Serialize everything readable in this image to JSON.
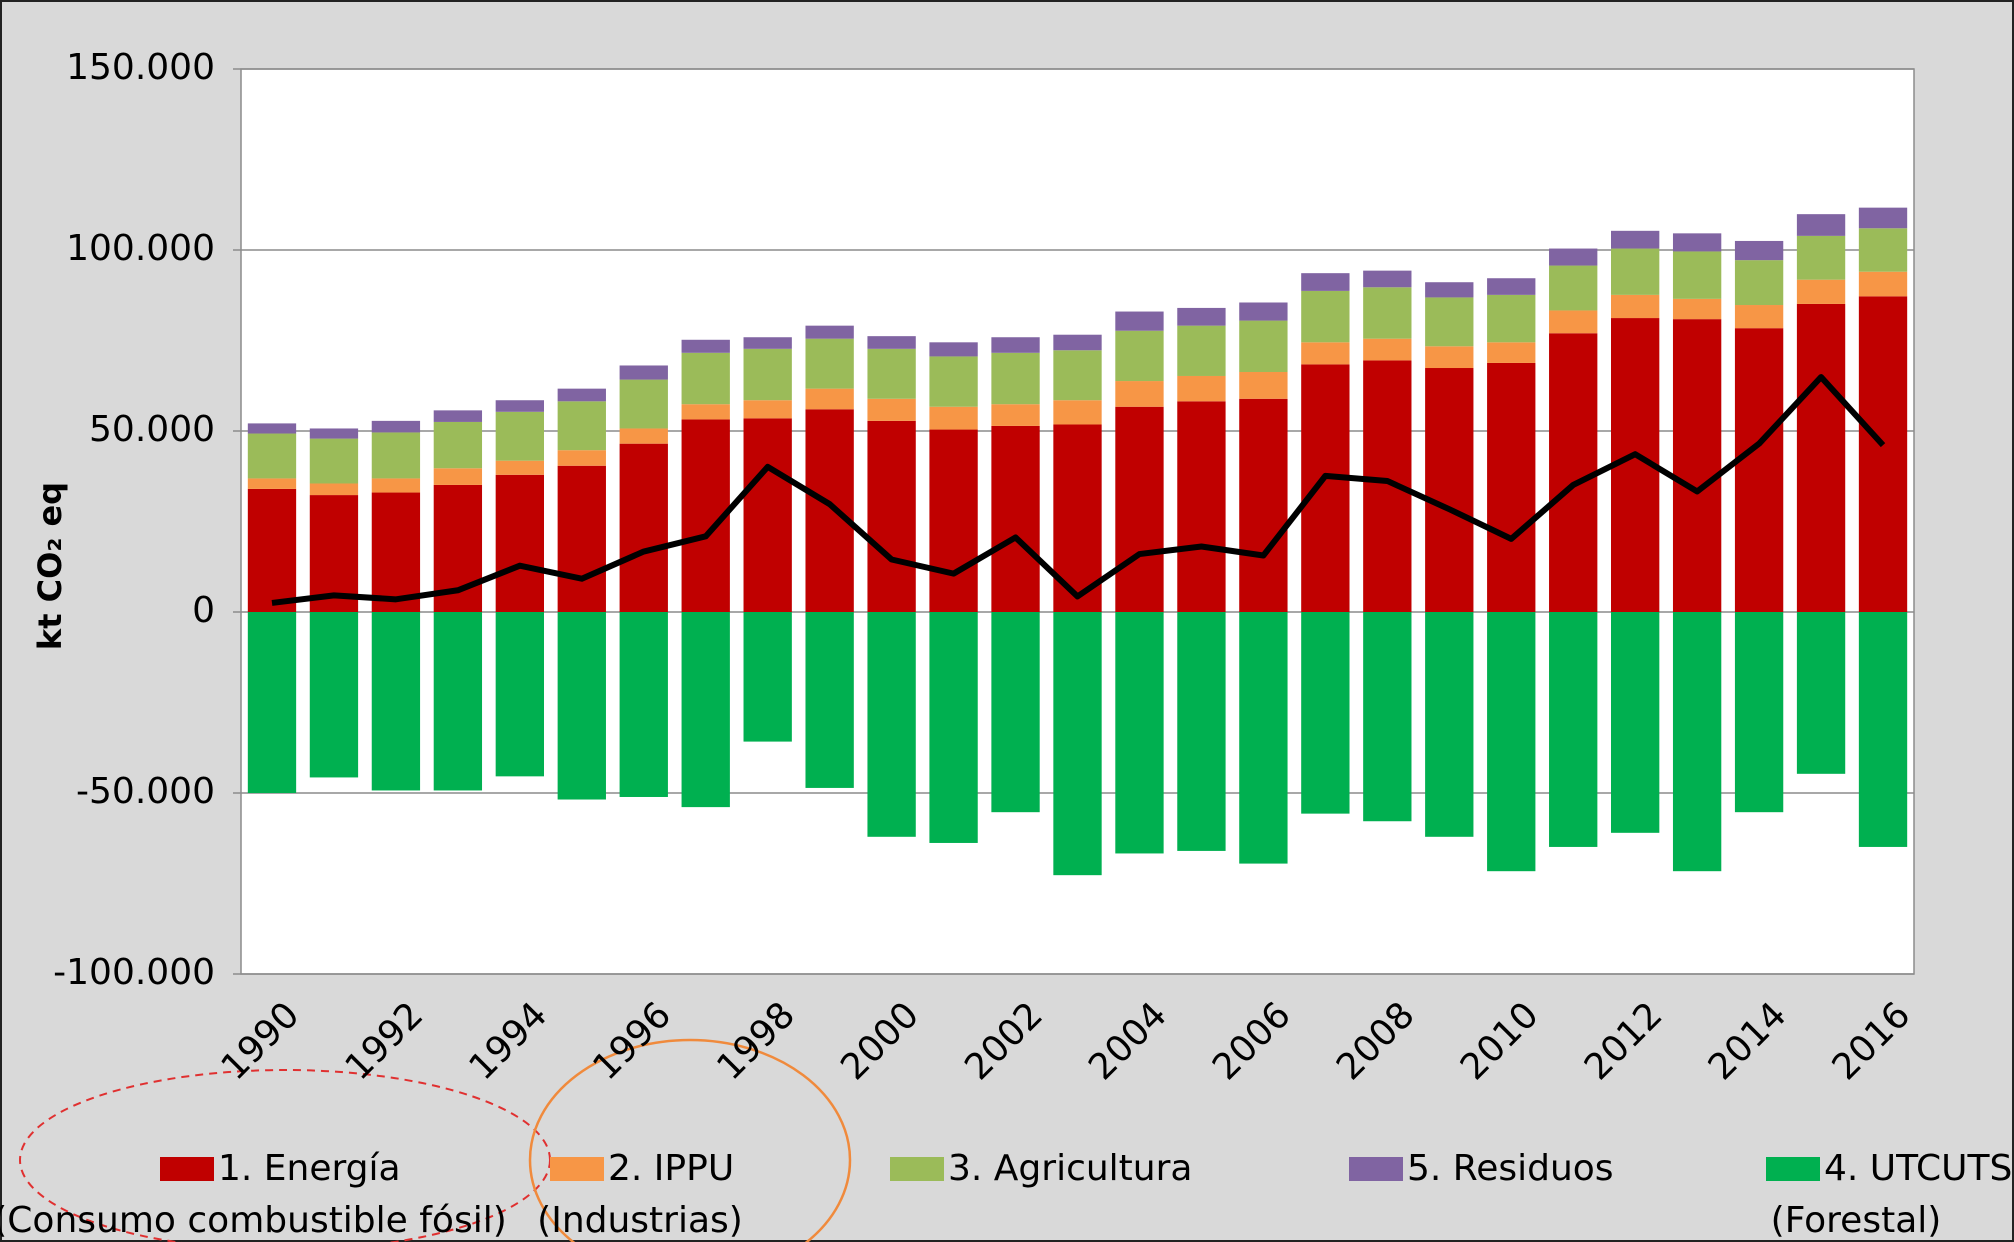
{
  "chart_data": {
    "type": "bar",
    "stacked": true,
    "y_label": "kt CO₂ eq",
    "categories": [
      "1990",
      null,
      "1992",
      null,
      "1994",
      null,
      "1996",
      null,
      "1998",
      null,
      "2000",
      null,
      "2002",
      null,
      "2004",
      null,
      "2006",
      null,
      "2008",
      null,
      "2010",
      null,
      "2012",
      null,
      "2014",
      null,
      "2016"
    ],
    "series": [
      {
        "name": "1. Energía",
        "sublabel": "(Consumo combustible fósil)",
        "color": "#c00000",
        "values": [
          34000,
          32300,
          33000,
          35100,
          37900,
          40400,
          46500,
          53200,
          53500,
          56000,
          52800,
          50400,
          51400,
          51800,
          56700,
          58200,
          58900,
          68400,
          69500,
          67400,
          68800,
          77000,
          81200,
          80900,
          78400,
          85100,
          87200
        ]
      },
      {
        "name": "2. IPPU",
        "sublabel": "(Industrias)",
        "color": "#f79646",
        "values": [
          2900,
          3200,
          3900,
          4600,
          3900,
          4300,
          4200,
          4200,
          5000,
          5700,
          6100,
          6300,
          6000,
          6700,
          7100,
          7000,
          7400,
          6100,
          6000,
          6000,
          5700,
          6300,
          6400,
          5600,
          6400,
          6700,
          6800
        ]
      },
      {
        "name": "3. Agricultura",
        "color": "#9bbb59",
        "values": [
          12400,
          12400,
          12700,
          12800,
          13500,
          13500,
          13500,
          14200,
          14200,
          13800,
          13800,
          13900,
          14200,
          13800,
          13900,
          13900,
          14200,
          14200,
          14200,
          13500,
          13100,
          12400,
          12800,
          13100,
          12400,
          12100,
          12000
        ]
      },
      {
        "name": "5. Residuos",
        "color": "#8064a2",
        "values": [
          2800,
          2800,
          3200,
          3200,
          3200,
          3500,
          3900,
          3600,
          3200,
          3600,
          3500,
          3900,
          4300,
          4300,
          5300,
          4900,
          5000,
          4900,
          4600,
          4200,
          4600,
          4700,
          4900,
          5000,
          5300,
          6000,
          5700
        ]
      },
      {
        "name": "4. UTCUTS",
        "sublabel": "(Forestal)",
        "color": "#00b050",
        "values": [
          -50000,
          -45700,
          -49300,
          -49300,
          -45400,
          -51800,
          -51100,
          -53900,
          -35800,
          -48600,
          -62100,
          -63800,
          -55300,
          -72700,
          -66700,
          -66000,
          -69500,
          -55700,
          -57800,
          -62100,
          -71600,
          -64900,
          -61000,
          -71600,
          -55300,
          -44700,
          -64900
        ]
      },
      {
        "type": "line",
        "color": "#000000",
        "values": [
          2500,
          4600,
          3500,
          6000,
          12800,
          9200,
          16700,
          20900,
          40100,
          29800,
          14500,
          10600,
          20600,
          4300,
          16000,
          18100,
          15600,
          37600,
          36200,
          28400,
          20200,
          35100,
          43600,
          33300,
          46500,
          64900,
          46100
        ]
      }
    ],
    "ylim": [
      -100000,
      150000
    ],
    "yticks": [
      {
        "value": -100000,
        "label": "-100.000"
      },
      {
        "value": -50000,
        "label": "-50.000"
      },
      0,
      {
        "value": 50000,
        "label": "50.000"
      },
      {
        "value": 100000,
        "label": "100.000"
      },
      {
        "value": 150000,
        "label": "150.000"
      }
    ],
    "grid": true
  }
}
